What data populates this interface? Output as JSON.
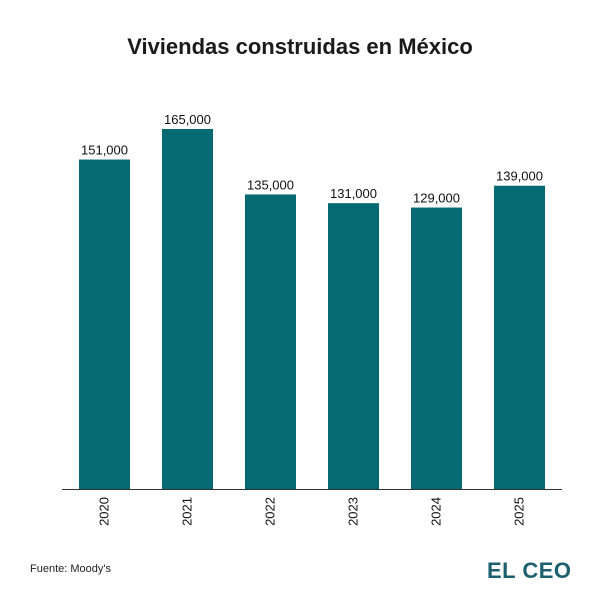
{
  "colors": {
    "bar": "#066a73",
    "axis": "#333333",
    "label": "#111111",
    "brand": "#1c5f6e"
  },
  "footer": {
    "source": "Fuente: Moody's",
    "brand": "EL CEO"
  },
  "chart_data": {
    "type": "bar",
    "title": "Viviendas construidas en México",
    "categories": [
      "2020",
      "2021",
      "2022",
      "2023",
      "2024",
      "2025"
    ],
    "values": [
      151000,
      165000,
      135000,
      131000,
      129000,
      139000
    ],
    "value_labels": [
      "151,000",
      "165,000",
      "135,000",
      "131,000",
      "129,000",
      "139,000"
    ],
    "xlabel": "",
    "ylabel": "",
    "ylim": [
      0,
      165000
    ],
    "grid": false,
    "legend": "none"
  }
}
